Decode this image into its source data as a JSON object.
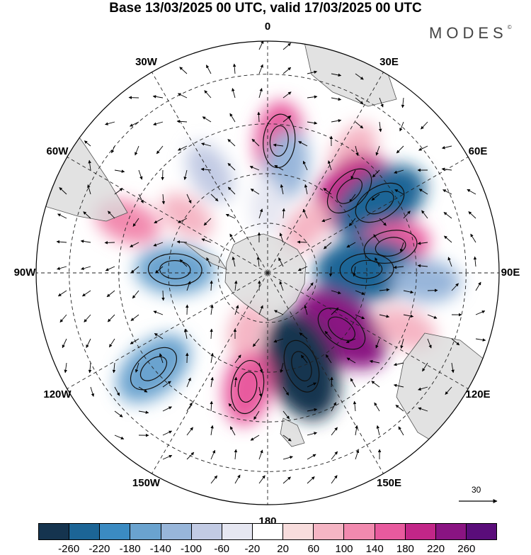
{
  "title": "Base 13/03/2025 00 UTC, valid 17/03/2025 00 UTC",
  "logo": {
    "text": "MODES",
    "mark": "©"
  },
  "map": {
    "projection": "south-polar-stereographic",
    "longitude_labels": [
      "0",
      "30E",
      "60E",
      "90E",
      "120E",
      "150E",
      "180",
      "150W",
      "120W",
      "90W",
      "60W",
      "30W"
    ],
    "anomaly_cells": [
      {
        "lon": 5,
        "lat": -50,
        "value": 150
      },
      {
        "lon": 10,
        "lat": -57,
        "value": -120
      },
      {
        "lon": 35,
        "lat": -45,
        "value": 80
      },
      {
        "lon": 45,
        "lat": -55,
        "value": 190
      },
      {
        "lon": 58,
        "lat": -50,
        "value": -230
      },
      {
        "lon": 78,
        "lat": -52,
        "value": 150
      },
      {
        "lon": 88,
        "lat": -60,
        "value": -240
      },
      {
        "lon": 93,
        "lat": -42,
        "value": -110
      },
      {
        "lon": 127,
        "lat": -62,
        "value": 240
      },
      {
        "lon": 112,
        "lat": -45,
        "value": 90
      },
      {
        "lon": 160,
        "lat": -60,
        "value": -270
      },
      {
        "lon": 190,
        "lat": -55,
        "value": 140
      },
      {
        "lon": 230,
        "lat": -45,
        "value": -170
      },
      {
        "lon": 272,
        "lat": -62,
        "value": -150
      },
      {
        "lon": 290,
        "lat": -45,
        "value": 100
      },
      {
        "lon": 330,
        "lat": -55,
        "value": -90
      },
      {
        "lon": 305,
        "lat": -60,
        "value": 70
      },
      {
        "lon": 0,
        "lat": -70,
        "value": -60
      },
      {
        "lon": 200,
        "lat": -72,
        "value": 60
      },
      {
        "lon": 40,
        "lat": -72,
        "value": 70
      }
    ],
    "wind_reference": {
      "value": "30"
    }
  },
  "colorbar": {
    "colors": [
      "#15344f",
      "#1c6596",
      "#3b8bc2",
      "#6aa3cf",
      "#98b6da",
      "#c2cbe4",
      "#e6e7f2",
      "#ffffff",
      "#f8dddd",
      "#f5b5c4",
      "#f28aaf",
      "#e85a9e",
      "#c22688",
      "#8a1482",
      "#5a0d7a"
    ],
    "ticks": [
      "-260",
      "-220",
      "-180",
      "-140",
      "-100",
      "-60",
      "-20",
      "20",
      "60",
      "100",
      "140",
      "180",
      "220",
      "260"
    ]
  }
}
